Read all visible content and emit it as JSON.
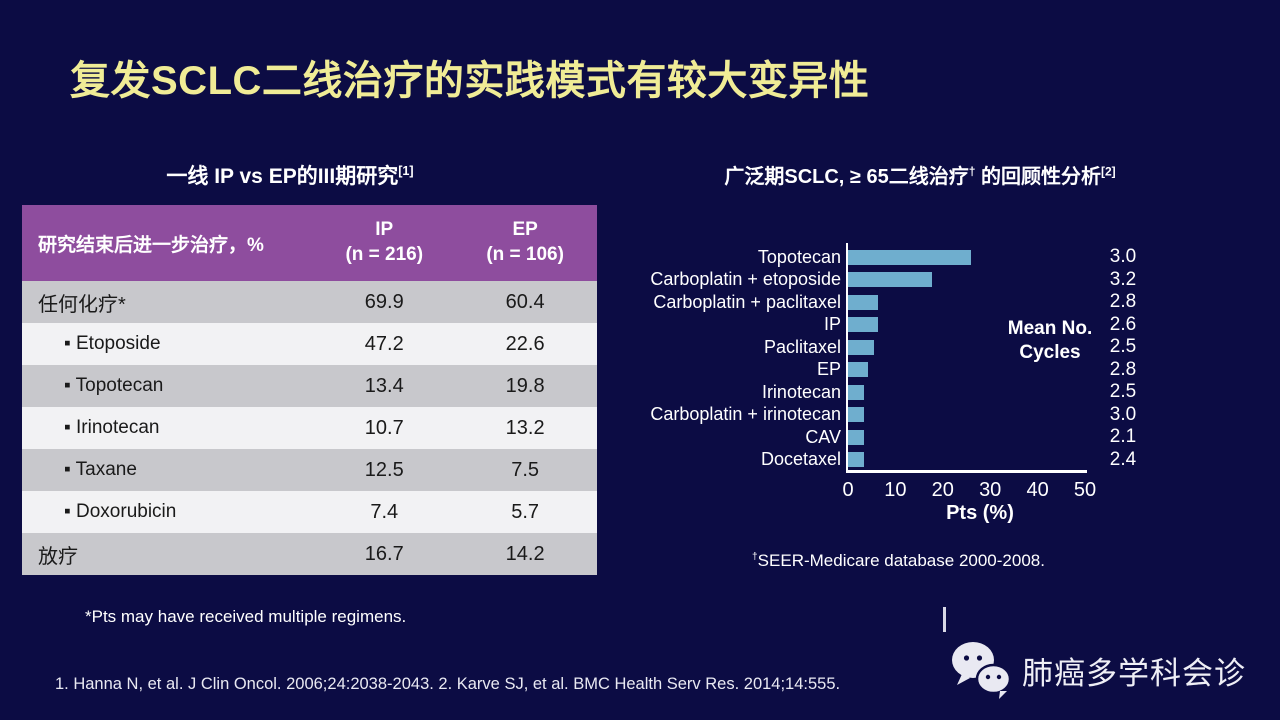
{
  "slide": {
    "title": "复发SCLC二线治疗的实践模式有较大变异性",
    "footnote_left": "*Pts may have received multiple regimens.",
    "citation": "1. Hanna N, et al. J Clin Oncol. 2006;24:2038-2043. 2. Karve SJ, et al. BMC Health Serv Res. 2014;14:555."
  },
  "colors": {
    "background": "#0C0C44",
    "title_text": "#F0EC96",
    "table_header_bg": "#8E4D9E",
    "table_row_dark": "#C8C8CC",
    "table_row_light": "#F2F2F4",
    "bar": "#6FAECE",
    "axis": "#FFFFFF"
  },
  "table": {
    "title": {
      "main": "一线 IP vs EP的III期研究",
      "sup": "[1]"
    },
    "header": {
      "col1": "研究结束后进一步治疗，%",
      "col2_line1": "IP",
      "col2_line2": "(n = 216)",
      "col3_line1": "EP",
      "col3_line2": "(n = 106)"
    },
    "rows": [
      {
        "label": "任何化疗*",
        "bullet": false,
        "ip": "69.9",
        "ep": "60.4"
      },
      {
        "label": "Etoposide",
        "bullet": true,
        "ip": "47.2",
        "ep": "22.6"
      },
      {
        "label": "Topotecan",
        "bullet": true,
        "ip": "13.4",
        "ep": "19.8"
      },
      {
        "label": "Irinotecan",
        "bullet": true,
        "ip": "10.7",
        "ep": "13.2"
      },
      {
        "label": "Taxane",
        "bullet": true,
        "ip": "12.5",
        "ep": "7.5"
      },
      {
        "label": "Doxorubicin",
        "bullet": true,
        "ip": "7.4",
        "ep": "5.7"
      },
      {
        "label": "放疗",
        "bullet": false,
        "ip": "16.7",
        "ep": "14.2"
      }
    ]
  },
  "chart_data": {
    "type": "bar",
    "orientation": "horizontal",
    "title": {
      "main": "广泛期SCLC, ≥ 65二线治疗",
      "sup1": "†",
      "mid": " 的回顾性分析",
      "sup2": "[2]"
    },
    "categories": [
      "Topotecan",
      "Carboplatin + etoposide",
      "Carboplatin + paclitaxel",
      "IP",
      "Paclitaxel",
      "EP",
      "Irinotecan",
      "Carboplatin + irinotecan",
      "CAV",
      "Docetaxel"
    ],
    "values": [
      26,
      17.8,
      6.3,
      6.3,
      5.5,
      4.2,
      3.3,
      3.3,
      3.3,
      3.3
    ],
    "mean_cycles": [
      "3.0",
      "3.2",
      "2.8",
      "2.6",
      "2.5",
      "2.8",
      "2.5",
      "3.0",
      "2.1",
      "2.4"
    ],
    "mean_cycles_label": {
      "line1": "Mean No.",
      "line2": "Cycles"
    },
    "xlabel": "Pts (%)",
    "x_ticks": [
      0,
      10,
      20,
      30,
      40,
      50
    ],
    "xlim": [
      0,
      50
    ],
    "grid": false,
    "legend": "none",
    "footnote": {
      "sup": "†",
      "text": "SEER-Medicare database 2000-2008."
    }
  },
  "wechat": {
    "label": "肺癌多学科会诊"
  }
}
